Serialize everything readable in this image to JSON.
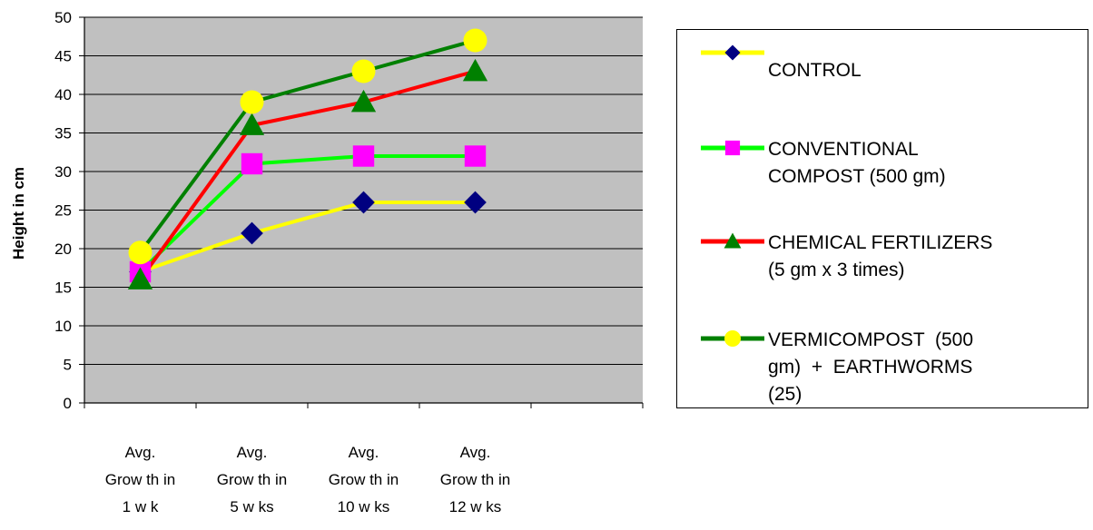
{
  "chart_data": {
    "type": "line",
    "ylabel": "Height in cm",
    "xlabel": "",
    "ylim": [
      0,
      50
    ],
    "yticks": [
      "0",
      "5",
      "10",
      "15",
      "20",
      "25",
      "30",
      "35",
      "40",
      "45",
      "50"
    ],
    "categories": [
      "Avg.\nGrow th in\n1 w k",
      "Avg.\nGrow th in\n5 w ks",
      "Avg.\nGrow th in\n10 w ks",
      "Avg.\nGrow th in\n12 w ks"
    ],
    "category_slots": 5,
    "grid": true,
    "legend_position": "right",
    "series": [
      {
        "name": "CONTROL",
        "values": [
          17,
          22,
          26,
          26
        ],
        "line_color": "#ffff00",
        "marker": "diamond",
        "marker_color": "#000080"
      },
      {
        "name": "CONVENTIONAL\nCOMPOST (500 gm)",
        "values": [
          17,
          31,
          32,
          32
        ],
        "line_color": "#00ff00",
        "marker": "square",
        "marker_color": "#ff00ff"
      },
      {
        "name": "CHEMICAL FERTILIZERS\n(5 gm x 3 times)",
        "values": [
          16,
          36,
          39,
          43
        ],
        "line_color": "#ff0000",
        "marker": "triangle",
        "marker_color": "#008000"
      },
      {
        "name": "VERMICOMPOST  (500\ngm)  +  EARTHWORMS\n(25)",
        "values": [
          19.5,
          39,
          43,
          47
        ],
        "line_color": "#008000",
        "marker": "circle",
        "marker_color": "#ffff00"
      }
    ]
  },
  "colors": {
    "plot_background": "#c0c0c0",
    "gridline": "#000000"
  }
}
